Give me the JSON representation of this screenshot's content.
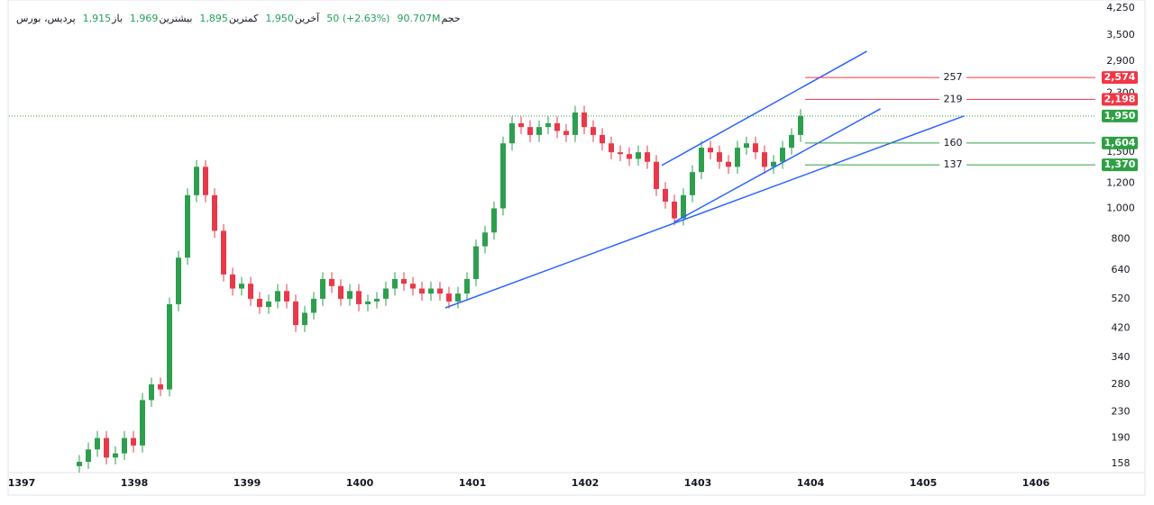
{
  "chart_data": {
    "type": "candlestick",
    "header": {
      "symbol": "پردیس، بورس",
      "stats": [
        {
          "label": "باز",
          "value": "1,915"
        },
        {
          "label": "بیشترین",
          "value": "1,969"
        },
        {
          "label": "کمترین",
          "value": "1,895"
        },
        {
          "label": "آخرین",
          "value": "1,950"
        }
      ],
      "change": "50 (+2.63%)",
      "volume": {
        "label": "حجم",
        "value": "90.707M"
      }
    },
    "log_scale": true,
    "grid": false,
    "up_color": "#2e9e4f",
    "down_color": "#e8394a",
    "xlim": [
      1396.888,
      1406.528
    ],
    "xticks": [
      1397,
      1398,
      1399,
      1400,
      1401,
      1402,
      1403,
      1404,
      1405,
      1406
    ],
    "ylim": [
      148,
      4510
    ],
    "yticks": [
      158,
      190,
      230,
      280,
      340,
      420,
      520,
      640,
      800,
      {
        "value": 1000,
        "label": "1,000"
      },
      {
        "value": 1200,
        "label": "1,200"
      },
      {
        "value": 1500,
        "label": "1,500"
      },
      {
        "value": 2300,
        "label": "2,300"
      },
      {
        "value": 2900,
        "label": "2,900"
      },
      {
        "value": 3500,
        "label": "3,500"
      },
      {
        "value": 4250,
        "label": "4,250"
      }
    ],
    "x": [
      1397.512,
      1397.592,
      1397.672,
      1397.752,
      1397.832,
      1397.912,
      1397.992,
      1398.072,
      1398.152,
      1398.232,
      1398.312,
      1398.392,
      1398.472,
      1398.552,
      1398.632,
      1398.712,
      1398.792,
      1398.872,
      1398.952,
      1399.032,
      1399.112,
      1399.192,
      1399.272,
      1399.352,
      1399.432,
      1399.512,
      1399.592,
      1399.672,
      1399.752,
      1399.832,
      1399.912,
      1399.992,
      1400.072,
      1400.152,
      1400.232,
      1400.312,
      1400.392,
      1400.472,
      1400.552,
      1400.632,
      1400.712,
      1400.792,
      1400.872,
      1400.952,
      1401.032,
      1401.112,
      1401.192,
      1401.272,
      1401.352,
      1401.432,
      1401.512,
      1401.592,
      1401.672,
      1401.752,
      1401.832,
      1401.912,
      1401.992,
      1402.072,
      1402.152,
      1402.232,
      1402.312,
      1402.392,
      1402.472,
      1402.552,
      1402.632,
      1402.712,
      1402.792,
      1402.872,
      1402.952,
      1403.032,
      1403.112,
      1403.192,
      1403.272,
      1403.352,
      1403.432,
      1403.512,
      1403.592,
      1403.672,
      1403.752,
      1403.832,
      1403.912
    ],
    "open": [
      155,
      160,
      175,
      190,
      165,
      170,
      190,
      180,
      250,
      280,
      270,
      500,
      700,
      1100,
      1350,
      1100,
      850,
      620,
      560,
      580,
      520,
      490,
      510,
      550,
      510,
      430,
      470,
      520,
      600,
      570,
      520,
      550,
      500,
      510,
      520,
      560,
      600,
      580,
      560,
      540,
      560,
      540,
      510,
      540,
      600,
      760,
      840,
      1000,
      1600,
      1850,
      1800,
      1700,
      1800,
      1850,
      1750,
      1700,
      2000,
      1800,
      1700,
      1600,
      1500,
      1480,
      1430,
      1500,
      1400,
      1150,
      1050,
      930,
      1100,
      1300,
      1550,
      1500,
      1400,
      1350,
      1550,
      1600,
      1500,
      1350,
      1400,
      1550,
      1700
    ],
    "high": [
      168,
      184,
      200,
      200,
      179,
      200,
      200,
      263,
      294,
      294,
      525,
      735,
      1155,
      1418,
      1418,
      1155,
      893,
      651,
      609,
      609,
      546,
      536,
      578,
      578,
      536,
      494,
      546,
      630,
      630,
      599,
      578,
      578,
      536,
      546,
      588,
      630,
      630,
      609,
      588,
      588,
      588,
      567,
      567,
      630,
      798,
      882,
      1050,
      1680,
      1943,
      1943,
      1890,
      1890,
      1943,
      1943,
      1838,
      2100,
      2100,
      1890,
      1785,
      1680,
      1575,
      1554,
      1575,
      1575,
      1470,
      1208,
      1103,
      1155,
      1365,
      1628,
      1628,
      1575,
      1470,
      1628,
      1680,
      1680,
      1575,
      1470,
      1628,
      1785,
      2048
    ],
    "low": [
      147,
      152,
      166,
      157,
      157,
      162,
      171,
      171,
      238,
      257,
      257,
      475,
      665,
      1045,
      1045,
      808,
      589,
      532,
      532,
      494,
      466,
      466,
      485,
      485,
      409,
      409,
      447,
      494,
      542,
      494,
      494,
      475,
      475,
      485,
      494,
      532,
      551,
      532,
      513,
      513,
      513,
      485,
      485,
      513,
      570,
      722,
      798,
      950,
      1520,
      1710,
      1615,
      1615,
      1710,
      1663,
      1615,
      1615,
      1710,
      1615,
      1520,
      1425,
      1406,
      1359,
      1359,
      1330,
      1093,
      998,
      884,
      884,
      1045,
      1235,
      1425,
      1330,
      1283,
      1283,
      1473,
      1425,
      1283,
      1283,
      1330,
      1473,
      1615
    ],
    "close": [
      160,
      175,
      190,
      165,
      170,
      190,
      180,
      250,
      280,
      270,
      500,
      700,
      1100,
      1350,
      1100,
      850,
      620,
      560,
      580,
      520,
      490,
      510,
      550,
      510,
      430,
      470,
      520,
      600,
      570,
      520,
      550,
      500,
      510,
      520,
      560,
      600,
      580,
      560,
      540,
      560,
      540,
      510,
      540,
      600,
      760,
      840,
      1000,
      1600,
      1850,
      1800,
      1700,
      1800,
      1850,
      1750,
      1700,
      2000,
      1800,
      1700,
      1600,
      1500,
      1480,
      1430,
      1500,
      1400,
      1150,
      1050,
      930,
      1100,
      1300,
      1550,
      1500,
      1400,
      1350,
      1550,
      1600,
      1500,
      1350,
      1400,
      1550,
      1700,
      1950
    ],
    "trendlines": [
      {
        "color": "#2962ff",
        "x": [
          1400.76,
          1405.36
        ],
        "y": [
          487,
          1949
        ]
      },
      {
        "color": "#2962ff",
        "x": [
          1402.79,
          1404.62
        ],
        "y": [
          905,
          2053
        ]
      },
      {
        "color": "#2962ff",
        "x": [
          1402.68,
          1404.5
        ],
        "y": [
          1364,
          3113
        ]
      }
    ],
    "levels": [
      {
        "value": 2574,
        "label": "2,574",
        "distance": 257,
        "color": "#f23645"
      },
      {
        "value": 2198,
        "label": "2,198",
        "distance": 219,
        "color": "#f23645"
      },
      {
        "value": 1604,
        "label": "1,604",
        "distance": 160,
        "color": "#2ea043"
      },
      {
        "value": 1370,
        "label": "1,370",
        "distance": 137,
        "color": "#2ea043"
      }
    ],
    "last_price": {
      "value": 1950,
      "label": "1,950",
      "color": "#2ea043"
    }
  }
}
